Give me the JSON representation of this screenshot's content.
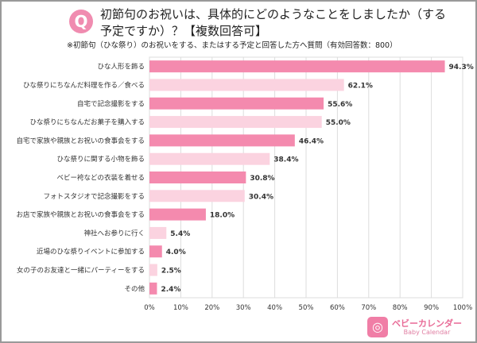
{
  "badge": "Q",
  "title": "初節句のお祝いは、具体的にどのようなことをしましたか（する予定ですか）？【複数回答可】",
  "subtitle": "※初節句（ひな祭り）のお祝いをする、またはする予定と回答した方へ質問（有効回答数：800）",
  "logo": {
    "name": "ベビーカレンダー",
    "sub": "Baby Calendar"
  },
  "chart_data": {
    "type": "bar",
    "orientation": "horizontal",
    "categories": [
      "ひな人形を飾る",
      "ひな祭りにちなんだ料理を作る／食べる",
      "自宅で記念撮影をする",
      "ひな祭りにちなんだお菓子を購入する",
      "自宅で家族や親族とお祝いの食事会をする",
      "ひな祭りに関する小物を飾る",
      "ベビー袴などの衣装を着せる",
      "フォトスタジオで記念撮影をする",
      "お店で家族や親族とお祝いの食事会をする",
      "神社へお参りに行く",
      "近場のひな祭りイベントに参加する",
      "女の子のお友達と一緒にパーティーをする",
      "その他"
    ],
    "values": [
      94.3,
      62.1,
      55.6,
      55.0,
      46.4,
      38.4,
      30.8,
      30.4,
      18.0,
      5.4,
      4.0,
      2.5,
      2.4
    ],
    "xlim": [
      0,
      100
    ],
    "xticks": [
      "0%",
      "10%",
      "20%",
      "30%",
      "40%",
      "50%",
      "60%",
      "70%",
      "80%",
      "90%",
      "100%"
    ],
    "grid": true,
    "colors": [
      "#f48aae",
      "#fbd3e0"
    ]
  }
}
